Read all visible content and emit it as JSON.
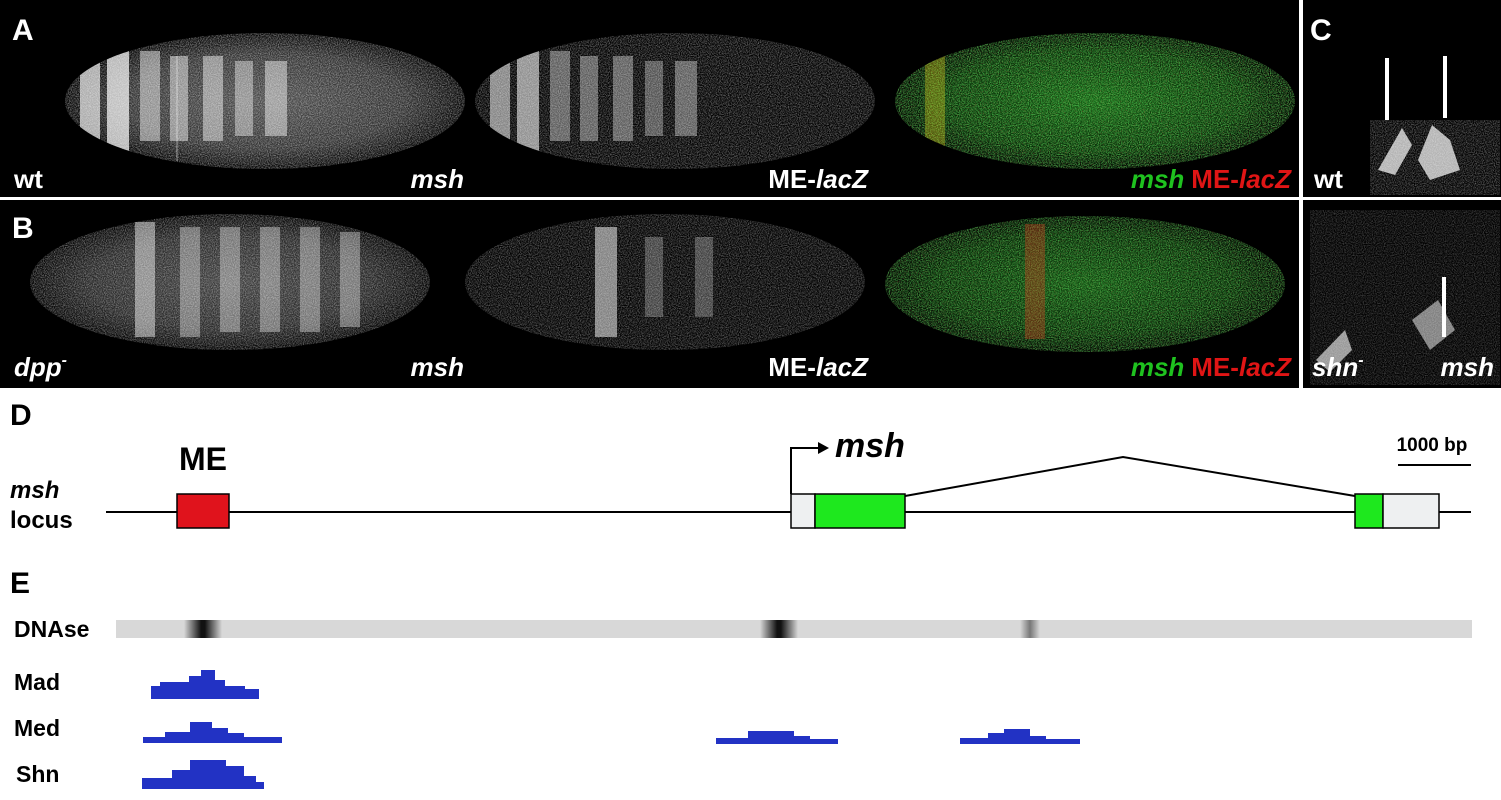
{
  "panels": {
    "A": {
      "letter": "A",
      "genotype": "wt",
      "ch1": "msh",
      "ch2_prefix": "ME-",
      "ch2_italic": "lacZ",
      "merge_green": "msh",
      "merge_red_prefix": "ME-",
      "merge_red_italic": "lacZ"
    },
    "B": {
      "letter": "B",
      "genotype": "dpp",
      "genotype_sup": "-",
      "ch1": "msh",
      "ch2_prefix": "ME-",
      "ch2_italic": "lacZ",
      "merge_green": "msh",
      "merge_red_prefix": "ME-",
      "merge_red_italic": "lacZ"
    },
    "C": {
      "letter": "C",
      "top_genotype": "wt",
      "bottom_genotype": "shn",
      "bottom_genotype_sup": "-",
      "bottom_gene": "msh"
    }
  },
  "locus": {
    "letter": "D",
    "enhancer_label": "ME",
    "gene_label": "msh",
    "track_label_italic": "msh",
    "track_label": "locus",
    "scale_label": "1000 bp"
  },
  "tracks": {
    "letter": "E",
    "dnase_label": "DNAse",
    "mad_label": "Mad",
    "med_label": "Med",
    "shn_label": "Shn"
  },
  "colors": {
    "enhancer": "#e0131c",
    "exon_coding": "#1ee81e",
    "exon_utr": "#eef0f1",
    "chip_signal": "#2232c4",
    "merge_green": "#1fc21f",
    "merge_red": "#e01515"
  }
}
